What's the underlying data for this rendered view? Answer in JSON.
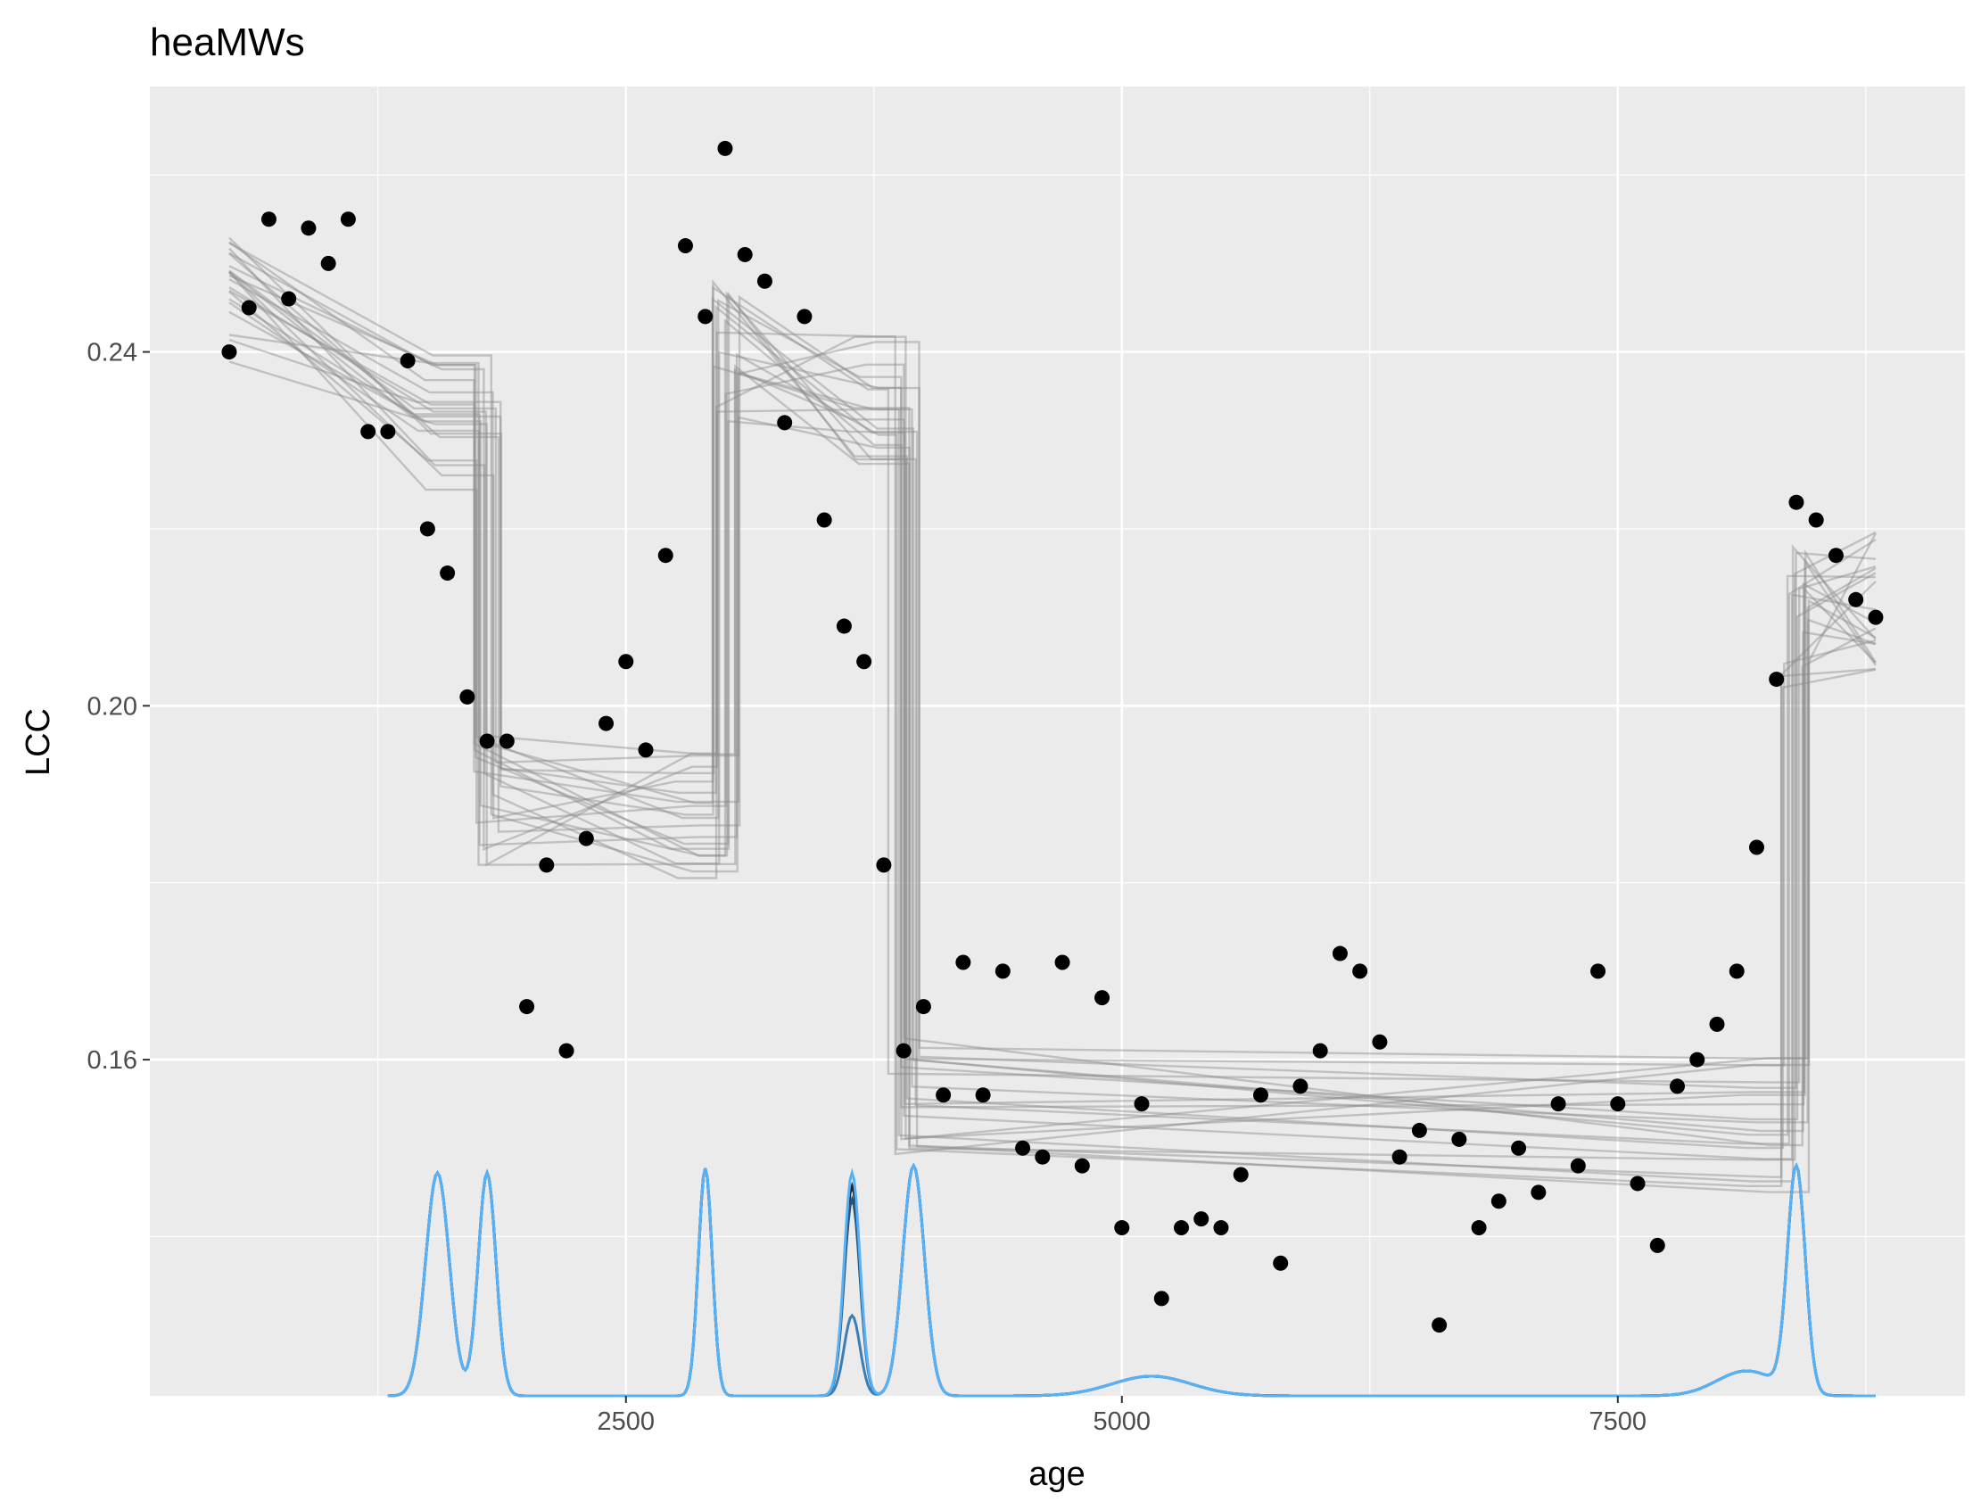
{
  "chart_data": {
    "type": "scatter",
    "title": "heaMWs",
    "xlabel": "age",
    "ylabel": "LCC",
    "xlim": [
      100,
      9250
    ],
    "ylim": [
      0.122,
      0.27
    ],
    "x_ticks": [
      2500,
      5000,
      7500
    ],
    "x_tick_labels": [
      "2500",
      "5000",
      "7500"
    ],
    "y_ticks": [
      0.16,
      0.2,
      0.24
    ],
    "y_tick_labels": [
      "0.16",
      "0.20",
      "0.24"
    ],
    "grid": true,
    "background": "#ebebeb",
    "points_color": "#000000",
    "lines_color": "#8c8c8c",
    "density_colors": [
      "#132b43",
      "#2a5478",
      "#3b7eb5",
      "#56b1f7"
    ],
    "points": [
      {
        "x": 500,
        "y": 0.24
      },
      {
        "x": 600,
        "y": 0.245
      },
      {
        "x": 700,
        "y": 0.255
      },
      {
        "x": 800,
        "y": 0.246
      },
      {
        "x": 900,
        "y": 0.254
      },
      {
        "x": 1000,
        "y": 0.25
      },
      {
        "x": 1100,
        "y": 0.255
      },
      {
        "x": 1200,
        "y": 0.231
      },
      {
        "x": 1300,
        "y": 0.231
      },
      {
        "x": 1400,
        "y": 0.239
      },
      {
        "x": 1500,
        "y": 0.22
      },
      {
        "x": 1600,
        "y": 0.215
      },
      {
        "x": 1700,
        "y": 0.201
      },
      {
        "x": 1800,
        "y": 0.196
      },
      {
        "x": 1900,
        "y": 0.196
      },
      {
        "x": 2000,
        "y": 0.166
      },
      {
        "x": 2100,
        "y": 0.182
      },
      {
        "x": 2200,
        "y": 0.161
      },
      {
        "x": 2300,
        "y": 0.185
      },
      {
        "x": 2400,
        "y": 0.198
      },
      {
        "x": 2500,
        "y": 0.205
      },
      {
        "x": 2600,
        "y": 0.195
      },
      {
        "x": 2700,
        "y": 0.217
      },
      {
        "x": 2800,
        "y": 0.252
      },
      {
        "x": 2900,
        "y": 0.244
      },
      {
        "x": 3000,
        "y": 0.263
      },
      {
        "x": 3100,
        "y": 0.251
      },
      {
        "x": 3200,
        "y": 0.248
      },
      {
        "x": 3300,
        "y": 0.232
      },
      {
        "x": 3400,
        "y": 0.244
      },
      {
        "x": 3500,
        "y": 0.221
      },
      {
        "x": 3600,
        "y": 0.209
      },
      {
        "x": 3700,
        "y": 0.205
      },
      {
        "x": 3800,
        "y": 0.182
      },
      {
        "x": 3900,
        "y": 0.161
      },
      {
        "x": 4000,
        "y": 0.166
      },
      {
        "x": 4100,
        "y": 0.156
      },
      {
        "x": 4200,
        "y": 0.171
      },
      {
        "x": 4300,
        "y": 0.156
      },
      {
        "x": 4400,
        "y": 0.17
      },
      {
        "x": 4500,
        "y": 0.15
      },
      {
        "x": 4600,
        "y": 0.149
      },
      {
        "x": 4700,
        "y": 0.171
      },
      {
        "x": 4800,
        "y": 0.148
      },
      {
        "x": 4900,
        "y": 0.167
      },
      {
        "x": 5000,
        "y": 0.141
      },
      {
        "x": 5100,
        "y": 0.155
      },
      {
        "x": 5200,
        "y": 0.133
      },
      {
        "x": 5300,
        "y": 0.141
      },
      {
        "x": 5400,
        "y": 0.142
      },
      {
        "x": 5500,
        "y": 0.141
      },
      {
        "x": 5600,
        "y": 0.147
      },
      {
        "x": 5700,
        "y": 0.156
      },
      {
        "x": 5800,
        "y": 0.137
      },
      {
        "x": 5900,
        "y": 0.157
      },
      {
        "x": 6000,
        "y": 0.161
      },
      {
        "x": 6100,
        "y": 0.172
      },
      {
        "x": 6200,
        "y": 0.17
      },
      {
        "x": 6300,
        "y": 0.162
      },
      {
        "x": 6400,
        "y": 0.149
      },
      {
        "x": 6500,
        "y": 0.152
      },
      {
        "x": 6600,
        "y": 0.13
      },
      {
        "x": 6700,
        "y": 0.151
      },
      {
        "x": 6800,
        "y": 0.141
      },
      {
        "x": 6900,
        "y": 0.144
      },
      {
        "x": 7000,
        "y": 0.15
      },
      {
        "x": 7100,
        "y": 0.145
      },
      {
        "x": 7200,
        "y": 0.155
      },
      {
        "x": 7300,
        "y": 0.148
      },
      {
        "x": 7400,
        "y": 0.17
      },
      {
        "x": 7500,
        "y": 0.155
      },
      {
        "x": 7600,
        "y": 0.146
      },
      {
        "x": 7700,
        "y": 0.139
      },
      {
        "x": 7800,
        "y": 0.157
      },
      {
        "x": 7900,
        "y": 0.16
      },
      {
        "x": 8000,
        "y": 0.164
      },
      {
        "x": 8100,
        "y": 0.17
      },
      {
        "x": 8200,
        "y": 0.184
      },
      {
        "x": 8300,
        "y": 0.203
      },
      {
        "x": 8400,
        "y": 0.223
      },
      {
        "x": 8500,
        "y": 0.221
      },
      {
        "x": 8600,
        "y": 0.217
      },
      {
        "x": 8700,
        "y": 0.212
      },
      {
        "x": 8800,
        "y": 0.21
      }
    ],
    "step_line": {
      "knots": [
        500,
        1500,
        1800,
        2800,
        3000,
        3700,
        3900,
        8200,
        8400,
        8800
      ],
      "levels": [
        0.245,
        0.232,
        0.19,
        0.188,
        0.24,
        0.235,
        0.157,
        0.153,
        0.21,
        0.212
      ],
      "count": 22
    }
  }
}
